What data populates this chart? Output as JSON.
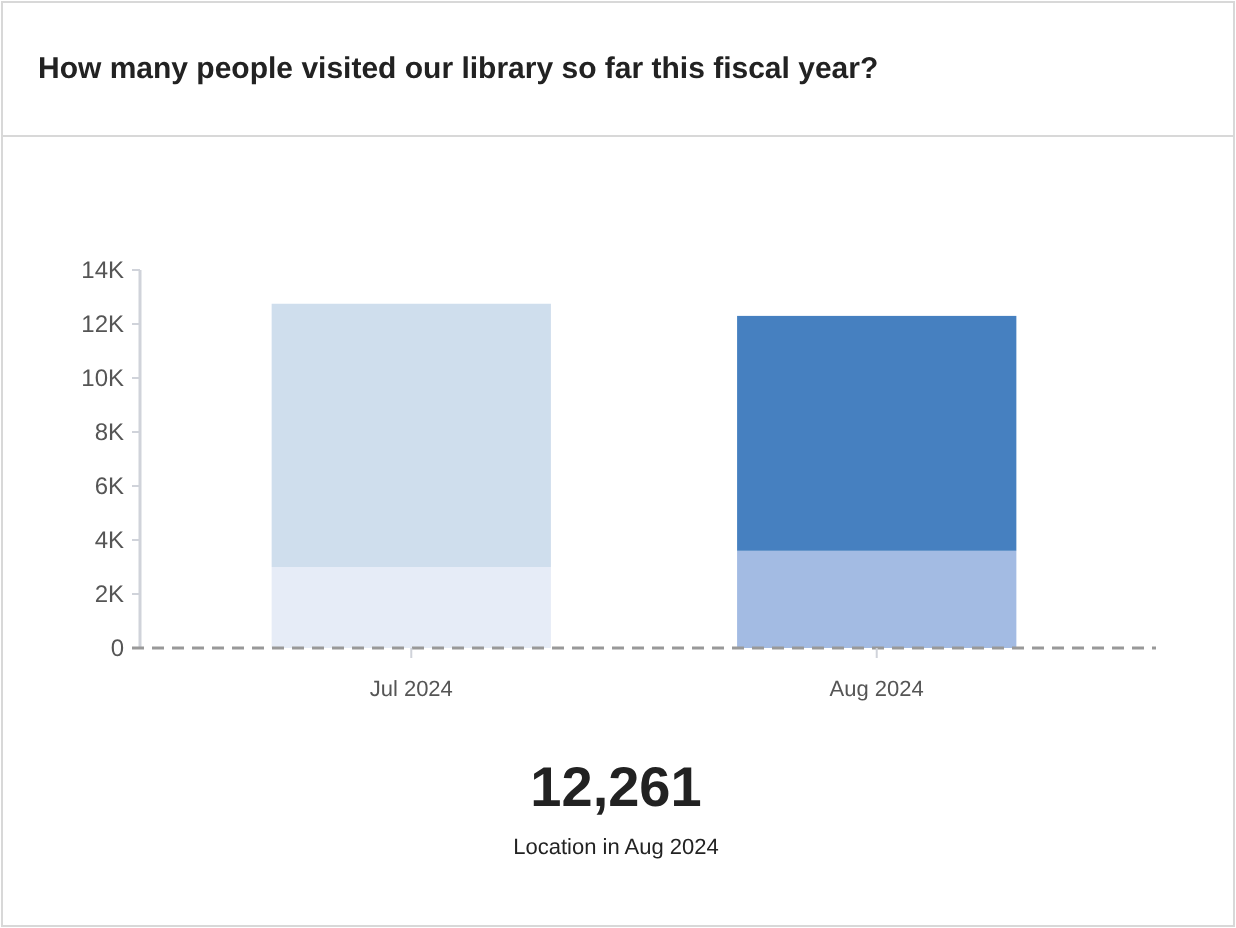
{
  "chart_data": {
    "type": "bar",
    "title": "How many people visited our library so far this fiscal year?",
    "categories": [
      "Jul 2024",
      "Aug 2024"
    ],
    "stacked": true,
    "series": [
      {
        "colors": [
          "#e6ecf7",
          "#a3bbe3"
        ],
        "values": [
          3000,
          3600
        ]
      },
      {
        "colors": [
          "#cfdeed",
          "#4680c0"
        ],
        "values": [
          9750,
          8700
        ]
      }
    ],
    "ylim": [
      0,
      14000
    ],
    "yticks": [
      {
        "value": 0,
        "label": "0"
      },
      {
        "value": 2000,
        "label": "2K"
      },
      {
        "value": 4000,
        "label": "4K"
      },
      {
        "value": 6000,
        "label": "6K"
      },
      {
        "value": 8000,
        "label": "8K"
      },
      {
        "value": 10000,
        "label": "10K"
      },
      {
        "value": 12000,
        "label": "12K"
      },
      {
        "value": 14000,
        "label": "14K"
      }
    ],
    "ref_lines": [
      {
        "axis": "y",
        "value": 0,
        "color": "#999999",
        "line_style": "dashed"
      }
    ],
    "grid": false,
    "annotations": [
      "12,261",
      "Location in Aug 2024"
    ]
  }
}
